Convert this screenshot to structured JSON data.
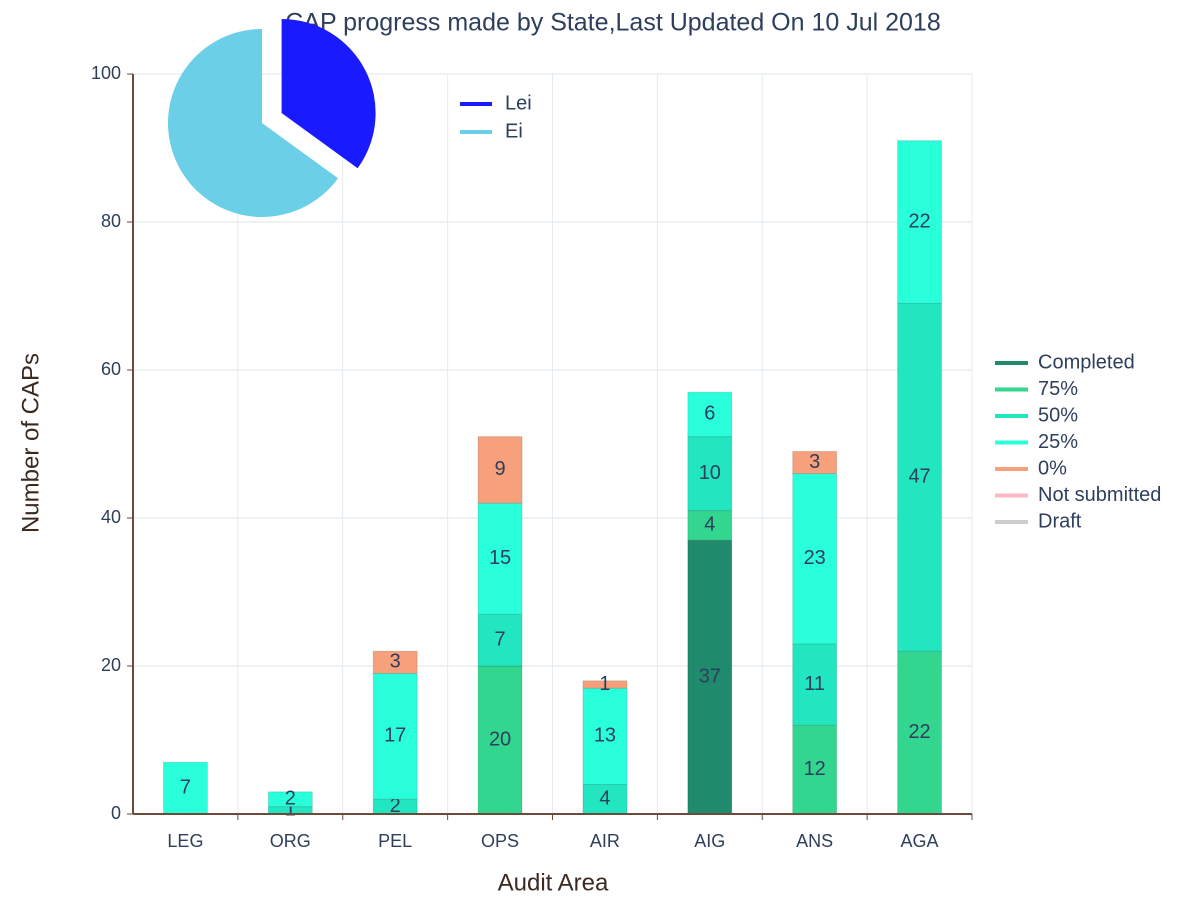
{
  "chart_data": [
    {
      "type": "bar",
      "stacked": true,
      "title": "CAP progress made by State,Last Updated On 10 Jul 2018",
      "x_label": "Audit Area",
      "y_label": "Number of CAPs",
      "categories": [
        "LEG",
        "ORG",
        "PEL",
        "OPS",
        "AIR",
        "AIG",
        "ANS",
        "AGA"
      ],
      "series": [
        {
          "name": "Completed",
          "color": "#1f8a6c",
          "values": [
            null,
            null,
            null,
            null,
            null,
            37,
            null,
            null
          ]
        },
        {
          "name": "75%",
          "color": "#33d68f",
          "values": [
            null,
            null,
            null,
            20,
            null,
            4,
            12,
            22
          ]
        },
        {
          "name": "50%",
          "color": "#22e6c0",
          "values": [
            null,
            1,
            2,
            7,
            4,
            10,
            11,
            47
          ]
        },
        {
          "name": "25%",
          "color": "#2affdc",
          "values": [
            7,
            2,
            17,
            15,
            13,
            6,
            23,
            22
          ]
        },
        {
          "name": "0%",
          "color": "#f7a07c",
          "values": [
            null,
            null,
            3,
            9,
            1,
            null,
            3,
            null
          ]
        },
        {
          "name": "Not submitted",
          "color": "#ffb8c6",
          "values": [
            null,
            null,
            null,
            null,
            null,
            null,
            null,
            null
          ]
        },
        {
          "name": "Draft",
          "color": "#cccccc",
          "values": [
            null,
            null,
            null,
            null,
            null,
            null,
            null,
            null
          ]
        }
      ],
      "ylim": [
        0,
        100
      ],
      "yticks": [
        0,
        20,
        40,
        60,
        80,
        100
      ],
      "grid": true,
      "legend": "right"
    },
    {
      "type": "pie",
      "categories": [
        "Lei",
        "Ei"
      ],
      "values": [
        35,
        65
      ],
      "colors": [
        "#1a1aff",
        "#6ccfe8"
      ],
      "legend": "top"
    }
  ]
}
